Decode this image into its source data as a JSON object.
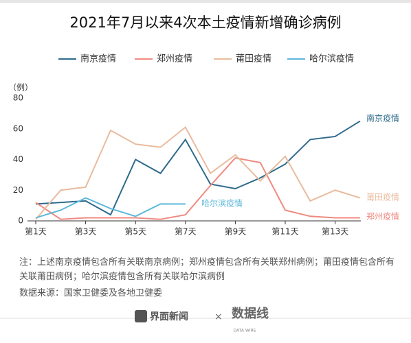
{
  "chart_data": {
    "type": "line",
    "title": "2021年7月以来4次本土疫情新增确诊病例",
    "y_label": "（例）",
    "categories": [
      "第1天",
      null,
      "第3天",
      null,
      "第5天",
      null,
      "第7天",
      null,
      "第9天",
      null,
      "第11天",
      null,
      "第13天",
      null
    ],
    "series": [
      {
        "name": "南京疫情",
        "color": "#2e6a8c",
        "values": [
          11,
          12,
          13,
          4,
          40,
          31,
          53,
          24,
          21,
          28,
          37,
          53,
          55,
          65
        ]
      },
      {
        "name": "郑州疫情",
        "color": "#f08a80",
        "values": [
          12,
          1,
          2,
          2,
          2,
          1,
          4,
          23,
          41,
          38,
          7,
          3,
          2,
          2
        ]
      },
      {
        "name": "莆田疫情",
        "color": "#e9bb9e",
        "values": [
          1,
          20,
          22,
          59,
          50,
          48,
          61,
          31,
          43,
          26,
          42,
          13,
          20,
          15
        ]
      },
      {
        "name": "哈尔滨疫情",
        "color": "#5cb8da",
        "values": [
          2,
          7,
          15,
          8,
          3,
          11,
          11,
          null,
          null,
          null,
          null,
          null,
          null,
          null
        ]
      }
    ],
    "ylim": [
      0,
      80
    ],
    "yticks": [
      0,
      20,
      40,
      60,
      80
    ],
    "grid": false,
    "note": "注：上述南京疫情包含所有关联南京病例；郑州疫情包含所有关联郑州病例；莆田疫情包含所有关联莆田病例；哈尔滨疫情包含所有关联哈尔滨病例",
    "source": "数据来源：国家卫健委及各地卫健委"
  },
  "footer": {
    "brand": "界面新闻",
    "separator": "×",
    "partner": "数据线",
    "partner_sub": "DATA WIRE"
  }
}
